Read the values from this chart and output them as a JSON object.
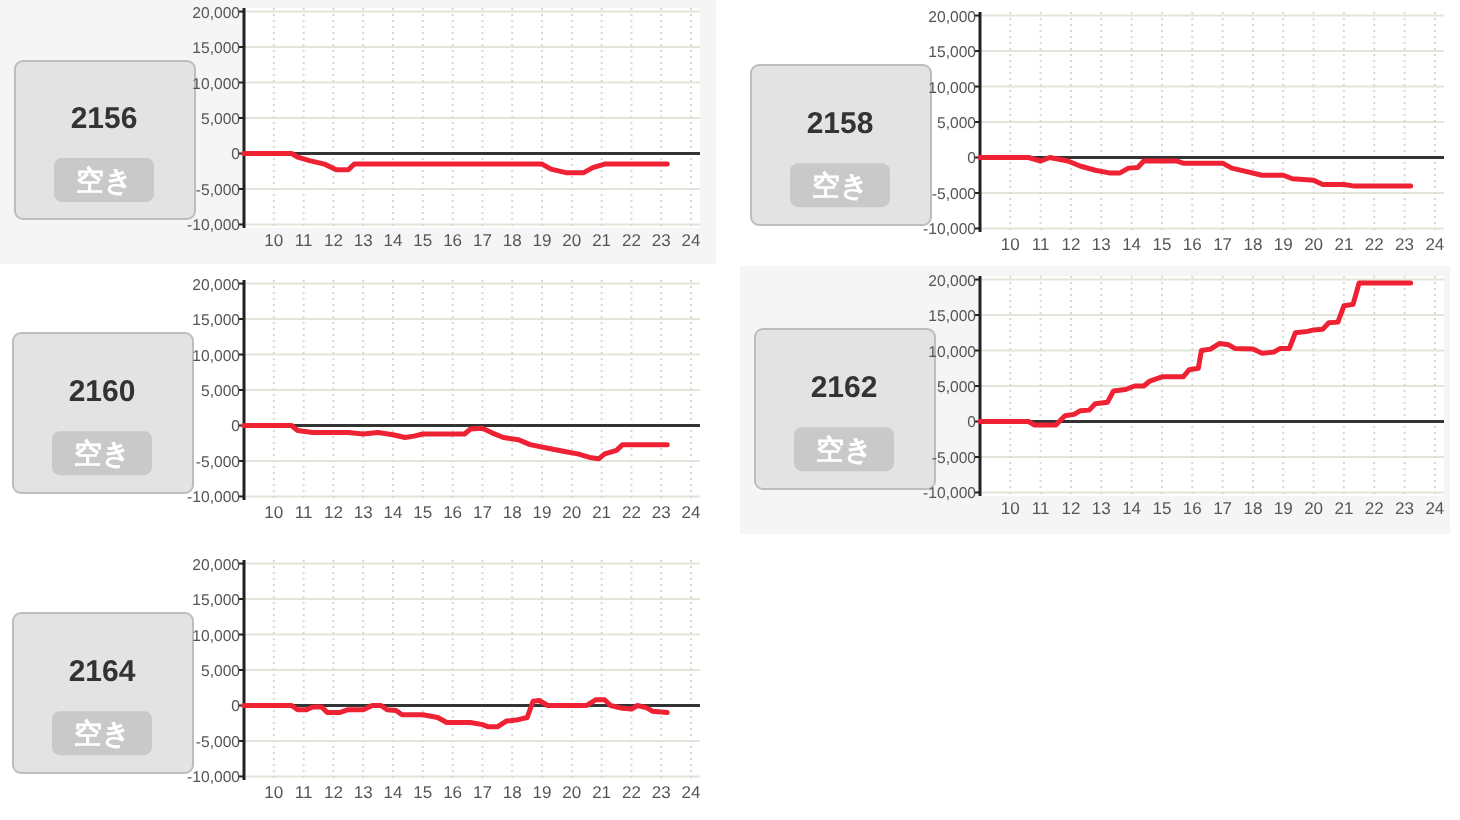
{
  "chart_data": [
    {
      "type": "other",
      "title": "2156",
      "annotations": [
        "空き"
      ]
    },
    {
      "type": "line",
      "x": [
        9,
        10.6,
        10.8,
        11.2,
        11.7,
        12.1,
        12.5,
        12.7,
        19.0,
        19.3,
        19.8,
        20.4,
        20.7,
        21.1,
        23.2
      ],
      "values": [
        0,
        0,
        -500,
        -1000,
        -1500,
        -2300,
        -2300,
        -1500,
        -1500,
        -2200,
        -2700,
        -2700,
        -2000,
        -1500,
        -1500
      ],
      "color": "#ee2233",
      "xlim": [
        9,
        24.3
      ],
      "ylim": [
        -10500,
        20500
      ],
      "xticks": [
        10,
        11,
        12,
        13,
        14,
        15,
        16,
        17,
        18,
        19,
        20,
        21,
        22,
        23,
        24
      ],
      "yticks": [
        {
          "value": 20000,
          "label": "20,000"
        },
        {
          "value": 15000,
          "label": "15,000"
        },
        {
          "value": 10000,
          "label": "10,000"
        },
        {
          "value": 5000,
          "label": "5,000"
        },
        {
          "value": 0,
          "label": "0"
        },
        {
          "value": -5000,
          "label": "-5,000"
        },
        {
          "value": -10000,
          "label": "-10,000"
        }
      ],
      "grid": true,
      "ref_lines": [
        {
          "axis": "y",
          "value": 0,
          "color": "#333333"
        }
      ]
    },
    {
      "type": "other",
      "title": "2158",
      "annotations": [
        "空き"
      ]
    },
    {
      "type": "line",
      "x": [
        9,
        10.6,
        11.0,
        11.3,
        11.9,
        12.3,
        12.8,
        13.3,
        13.6,
        13.9,
        14.2,
        14.4,
        15.5,
        15.7,
        17.0,
        17.3,
        17.8,
        18.3,
        19.0,
        19.3,
        20.0,
        20.3,
        21.0,
        21.3,
        23.2
      ],
      "values": [
        0,
        0,
        -500,
        0,
        -500,
        -1200,
        -1800,
        -2200,
        -2200,
        -1500,
        -1400,
        -500,
        -500,
        -800,
        -800,
        -1500,
        -2000,
        -2500,
        -2500,
        -3000,
        -3200,
        -3800,
        -3800,
        -4000,
        -4000
      ],
      "color": "#ee2233",
      "xlim": [
        9,
        24.3
      ],
      "ylim": [
        -10500,
        20500
      ],
      "xticks": [
        10,
        11,
        12,
        13,
        14,
        15,
        16,
        17,
        18,
        19,
        20,
        21,
        22,
        23,
        24
      ],
      "yticks": [
        {
          "value": 20000,
          "label": "20,000"
        },
        {
          "value": 15000,
          "label": "15,000"
        },
        {
          "value": 10000,
          "label": "10,000"
        },
        {
          "value": 5000,
          "label": "5,000"
        },
        {
          "value": 0,
          "label": "0"
        },
        {
          "value": -5000,
          "label": "-5,000"
        },
        {
          "value": -10000,
          "label": "-10,000"
        }
      ],
      "grid": true,
      "ref_lines": [
        {
          "axis": "y",
          "value": 0,
          "color": "#333333"
        }
      ]
    },
    {
      "type": "other",
      "title": "2160",
      "annotations": [
        "空き"
      ]
    },
    {
      "type": "line",
      "x": [
        9,
        10.6,
        10.8,
        11.3,
        12.5,
        13.0,
        13.5,
        14.0,
        14.4,
        14.7,
        15.0,
        16.4,
        16.6,
        17.0,
        17.3,
        17.7,
        18.2,
        18.6,
        19.2,
        19.8,
        20.2,
        20.6,
        20.9,
        21.1,
        21.5,
        21.7,
        23.2
      ],
      "values": [
        0,
        0,
        -700,
        -1000,
        -1000,
        -1200,
        -1000,
        -1300,
        -1700,
        -1500,
        -1200,
        -1200,
        -500,
        -400,
        -1000,
        -1700,
        -2000,
        -2700,
        -3200,
        -3700,
        -4000,
        -4500,
        -4700,
        -4000,
        -3500,
        -2700,
        -2700
      ],
      "color": "#ee2233",
      "xlim": [
        9,
        24.3
      ],
      "ylim": [
        -10500,
        20500
      ],
      "xticks": [
        10,
        11,
        12,
        13,
        14,
        15,
        16,
        17,
        18,
        19,
        20,
        21,
        22,
        23,
        24
      ],
      "yticks": [
        {
          "value": 20000,
          "label": "20,000"
        },
        {
          "value": 15000,
          "label": "15,000"
        },
        {
          "value": 10000,
          "label": "10,000"
        },
        {
          "value": 5000,
          "label": "5,000"
        },
        {
          "value": 0,
          "label": "0"
        },
        {
          "value": -5000,
          "label": "-5,000"
        },
        {
          "value": -10000,
          "label": "-10,000"
        }
      ],
      "grid": true,
      "ref_lines": [
        {
          "axis": "y",
          "value": 0,
          "color": "#333333"
        }
      ]
    },
    {
      "type": "other",
      "title": "2162",
      "annotations": [
        "空き"
      ]
    },
    {
      "type": "line",
      "x": [
        9,
        10.6,
        10.8,
        11.5,
        11.8,
        12.1,
        12.3,
        12.6,
        12.8,
        13.2,
        13.4,
        13.8,
        14.1,
        14.4,
        14.6,
        15.0,
        15.7,
        15.9,
        16.2,
        16.3,
        16.6,
        16.9,
        17.2,
        17.4,
        18.0,
        18.3,
        18.7,
        18.9,
        19.2,
        19.4,
        19.8,
        20.0,
        20.3,
        20.5,
        20.8,
        21.0,
        21.3,
        21.5,
        23.2
      ],
      "values": [
        0,
        0,
        -500,
        -500,
        800,
        1000,
        1500,
        1600,
        2500,
        2700,
        4300,
        4500,
        5000,
        5000,
        5700,
        6300,
        6300,
        7300,
        7500,
        10000,
        10200,
        11000,
        10800,
        10300,
        10200,
        9600,
        9800,
        10300,
        10300,
        12500,
        12700,
        12900,
        13000,
        13900,
        14000,
        16300,
        16500,
        19500,
        19500
      ],
      "color": "#ee2233",
      "xlim": [
        9,
        24.3
      ],
      "ylim": [
        -10500,
        20500
      ],
      "xticks": [
        10,
        11,
        12,
        13,
        14,
        15,
        16,
        17,
        18,
        19,
        20,
        21,
        22,
        23,
        24
      ],
      "yticks": [
        {
          "value": 20000,
          "label": "20,000"
        },
        {
          "value": 15000,
          "label": "15,000"
        },
        {
          "value": 10000,
          "label": "10,000"
        },
        {
          "value": 5000,
          "label": "5,000"
        },
        {
          "value": 0,
          "label": "0"
        },
        {
          "value": -5000,
          "label": "-5,000"
        },
        {
          "value": -10000,
          "label": "-10,000"
        }
      ],
      "grid": true,
      "ref_lines": [
        {
          "axis": "y",
          "value": 0,
          "color": "#333333"
        }
      ]
    },
    {
      "type": "other",
      "title": "2164",
      "annotations": [
        "空き"
      ]
    },
    {
      "type": "line",
      "x": [
        9,
        10.6,
        10.8,
        11.1,
        11.3,
        11.6,
        11.8,
        12.2,
        12.5,
        13.0,
        13.3,
        13.6,
        13.8,
        14.1,
        14.3,
        15.0,
        15.5,
        15.8,
        16.6,
        17.0,
        17.2,
        17.5,
        17.8,
        18.2,
        18.5,
        18.7,
        18.9,
        19.2,
        20.5,
        20.8,
        21.1,
        21.3,
        21.7,
        22.0,
        22.2,
        22.5,
        22.7,
        23.2
      ],
      "values": [
        0,
        0,
        -600,
        -600,
        -200,
        -200,
        -1000,
        -1000,
        -600,
        -600,
        0,
        0,
        -600,
        -700,
        -1300,
        -1300,
        -1700,
        -2400,
        -2400,
        -2700,
        -3000,
        -3000,
        -2200,
        -2000,
        -1700,
        600,
        700,
        0,
        0,
        800,
        800,
        0,
        -400,
        -500,
        0,
        -300,
        -800,
        -1000
      ],
      "color": "#ee2233",
      "xlim": [
        9,
        24.3
      ],
      "ylim": [
        -10500,
        20500
      ],
      "xticks": [
        10,
        11,
        12,
        13,
        14,
        15,
        16,
        17,
        18,
        19,
        20,
        21,
        22,
        23,
        24
      ],
      "yticks": [
        {
          "value": 20000,
          "label": "20,000"
        },
        {
          "value": 15000,
          "label": "15,000"
        },
        {
          "value": 10000,
          "label": "10,000"
        },
        {
          "value": 5000,
          "label": "5,000"
        },
        {
          "value": 0,
          "label": "0"
        },
        {
          "value": -5000,
          "label": "-5,000"
        },
        {
          "value": -10000,
          "label": "-10,000"
        }
      ],
      "grid": true,
      "ref_lines": [
        {
          "axis": "y",
          "value": 0,
          "color": "#333333"
        }
      ]
    }
  ]
}
